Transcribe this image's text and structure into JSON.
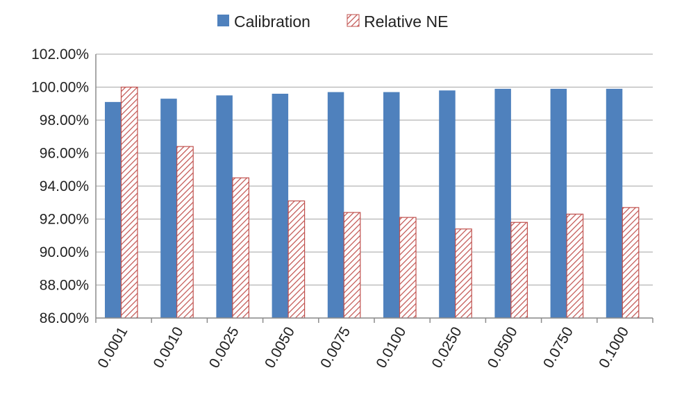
{
  "chart_data": {
    "type": "bar",
    "categories": [
      "0.0001",
      "0.0010",
      "0.0025",
      "0.0050",
      "0.0075",
      "0.0100",
      "0.0250",
      "0.0500",
      "0.0750",
      "0.1000"
    ],
    "series": [
      {
        "name": "Calibration",
        "values": [
          99.1,
          99.3,
          99.5,
          99.6,
          99.7,
          99.7,
          99.8,
          99.9,
          99.9,
          99.9
        ],
        "color": "#4f81bd",
        "pattern": "solid"
      },
      {
        "name": "Relative NE",
        "values": [
          100.0,
          96.4,
          94.5,
          93.1,
          92.4,
          92.1,
          91.4,
          91.8,
          92.3,
          92.7
        ],
        "color": "#c0504d",
        "pattern": "diagonal-hatch"
      }
    ],
    "ylim": [
      86,
      102
    ],
    "yticks": [
      86,
      88,
      90,
      92,
      94,
      96,
      98,
      100,
      102
    ],
    "ytick_labels": [
      "86.00%",
      "88.00%",
      "90.00%",
      "92.00%",
      "94.00%",
      "96.00%",
      "98.00%",
      "100.00%",
      "102.00%"
    ],
    "title": "",
    "xlabel": "",
    "ylabel": "",
    "grid": true,
    "legend_position": "top-center"
  }
}
